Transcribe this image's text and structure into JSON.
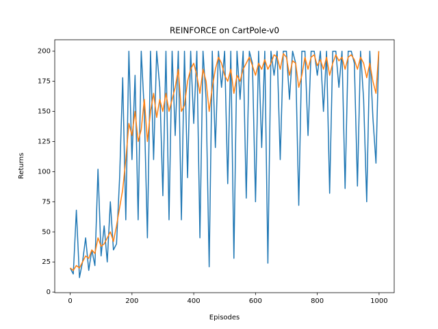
{
  "chart_data": {
    "type": "line",
    "title": "REINFORCE on CartPole-v0",
    "xlabel": "Episodes",
    "ylabel": "Returns",
    "x": [
      0,
      10,
      20,
      30,
      40,
      50,
      60,
      70,
      80,
      90,
      100,
      110,
      120,
      130,
      140,
      150,
      160,
      170,
      180,
      190,
      200,
      210,
      220,
      230,
      240,
      250,
      260,
      270,
      280,
      290,
      300,
      310,
      320,
      330,
      340,
      350,
      360,
      370,
      380,
      390,
      400,
      410,
      420,
      430,
      440,
      450,
      460,
      470,
      480,
      490,
      500,
      510,
      520,
      530,
      540,
      550,
      560,
      570,
      580,
      590,
      600,
      610,
      620,
      630,
      640,
      650,
      660,
      670,
      680,
      690,
      700,
      710,
      720,
      730,
      740,
      750,
      760,
      770,
      780,
      790,
      800,
      810,
      820,
      830,
      840,
      850,
      860,
      870,
      880,
      890,
      900,
      910,
      920,
      930,
      940,
      950,
      960,
      970,
      980,
      990,
      999
    ],
    "series": [
      {
        "color": "#1f77b4",
        "values": [
          20,
          15,
          68,
          12,
          25,
          45,
          18,
          35,
          22,
          102,
          30,
          55,
          25,
          75,
          35,
          40,
          95,
          178,
          60,
          200,
          110,
          180,
          60,
          200,
          150,
          45,
          200,
          110,
          200,
          170,
          80,
          200,
          60,
          200,
          130,
          200,
          60,
          200,
          95,
          200,
          140,
          200,
          45,
          200,
          160,
          21,
          200,
          120,
          200,
          170,
          200,
          90,
          200,
          28,
          200,
          160,
          200,
          78,
          200,
          190,
          75,
          200,
          120,
          200,
          24,
          200,
          180,
          200,
          110,
          200,
          200,
          160,
          200,
          190,
          72,
          200,
          200,
          130,
          200,
          200,
          180,
          200,
          150,
          200,
          82,
          200,
          200,
          170,
          200,
          86,
          200,
          200,
          190,
          88,
          200,
          160,
          75,
          200,
          145,
          107,
          200
        ]
      },
      {
        "color": "#ff7f0e",
        "values": [
          20,
          18,
          22,
          20,
          25,
          30,
          28,
          35,
          32,
          45,
          38,
          40,
          45,
          50,
          42,
          55,
          70,
          85,
          110,
          140,
          130,
          150,
          125,
          135,
          160,
          125,
          150,
          165,
          145,
          160,
          150,
          165,
          150,
          160,
          170,
          185,
          150,
          155,
          175,
          185,
          190,
          180,
          165,
          185,
          175,
          150,
          170,
          185,
          195,
          190,
          180,
          175,
          185,
          165,
          180,
          175,
          185,
          190,
          195,
          188,
          180,
          190,
          185,
          193,
          185,
          190,
          197,
          195,
          185,
          198,
          195,
          180,
          192,
          190,
          170,
          180,
          195,
          185,
          195,
          197,
          188,
          193,
          185,
          195,
          180,
          190,
          197,
          192,
          195,
          185,
          195,
          197,
          193,
          185,
          195,
          190,
          178,
          190,
          175,
          165,
          200
        ]
      }
    ],
    "xlim": [
      -50,
      1049
    ],
    "ylim": [
      -0.5,
      209.5
    ],
    "xticks": [
      0,
      200,
      400,
      600,
      800,
      1000
    ],
    "yticks": [
      0,
      25,
      50,
      75,
      100,
      125,
      150,
      175,
      200
    ],
    "grid": false
  }
}
